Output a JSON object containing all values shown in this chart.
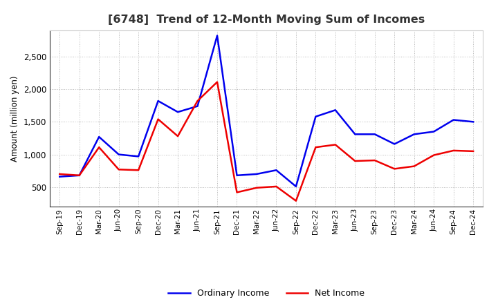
{
  "title": "[6748]  Trend of 12-Month Moving Sum of Incomes",
  "ylabel": "Amount (million yen)",
  "background_color": "#ffffff",
  "plot_background": "#ffffff",
  "grid_color": "#999999",
  "x_labels": [
    "Sep-19",
    "Dec-19",
    "Mar-20",
    "Jun-20",
    "Sep-20",
    "Dec-20",
    "Mar-21",
    "Jun-21",
    "Sep-21",
    "Dec-21",
    "Mar-22",
    "Jun-22",
    "Sep-22",
    "Dec-22",
    "Mar-23",
    "Jun-23",
    "Sep-23",
    "Dec-23",
    "Mar-24",
    "Jun-24",
    "Sep-24",
    "Dec-24"
  ],
  "ordinary_income": [
    660,
    680,
    1270,
    1000,
    970,
    1820,
    1650,
    1740,
    2820,
    680,
    700,
    760,
    510,
    1580,
    1680,
    1310,
    1310,
    1160,
    1310,
    1350,
    1530,
    1500
  ],
  "net_income": [
    700,
    680,
    1110,
    770,
    760,
    1540,
    1280,
    1820,
    2110,
    420,
    490,
    510,
    290,
    1110,
    1150,
    900,
    910,
    780,
    820,
    990,
    1060,
    1050
  ],
  "ordinary_color": "#0000ee",
  "net_color": "#ee0000",
  "ylim_min": 200,
  "ylim_max": 2900,
  "yticks": [
    500,
    1000,
    1500,
    2000,
    2500
  ],
  "legend_ordinary": "Ordinary Income",
  "legend_net": "Net Income",
  "line_width": 1.8,
  "title_color": "#333333",
  "title_fontsize": 11.5
}
